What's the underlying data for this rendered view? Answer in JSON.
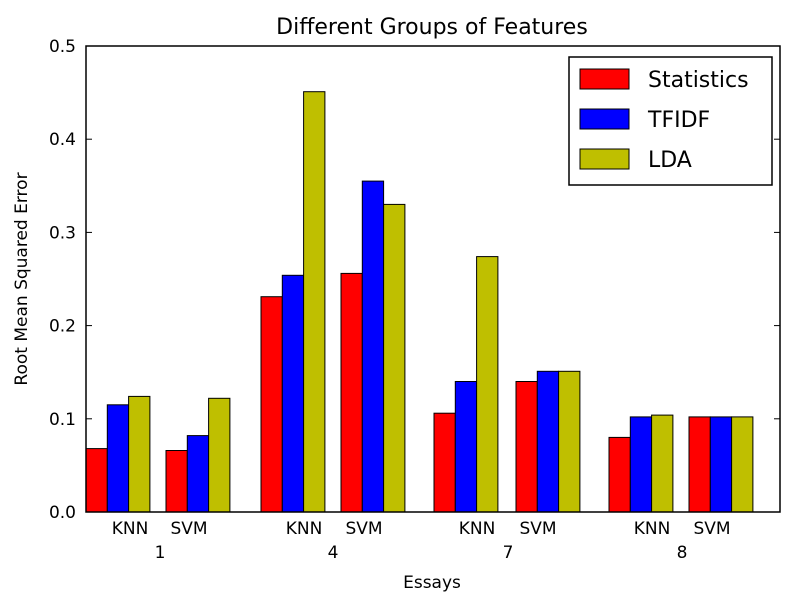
{
  "chart_data": {
    "type": "bar",
    "title": "Different Groups of Features",
    "xlabel": "Essays",
    "ylabel": "Root Mean Squared Error",
    "ylim": [
      0,
      0.5
    ],
    "yticks": [
      "0.0",
      "0.1",
      "0.2",
      "0.3",
      "0.4",
      "0.5"
    ],
    "grid": false,
    "legend_position": "top-right",
    "essays": [
      "1",
      "4",
      "7",
      "8"
    ],
    "methods": [
      "KNN",
      "SVM"
    ],
    "categories": [
      "1 KNN",
      "1 SVM",
      "4 KNN",
      "4 SVM",
      "7 KNN",
      "7 SVM",
      "8 KNN",
      "8 SVM"
    ],
    "series": [
      {
        "name": "Statistics",
        "color": "#ff0000",
        "values": [
          0.068,
          0.066,
          0.231,
          0.256,
          0.106,
          0.14,
          0.08,
          0.102
        ]
      },
      {
        "name": "TFIDF",
        "color": "#0000ff",
        "values": [
          0.115,
          0.082,
          0.254,
          0.355,
          0.14,
          0.151,
          0.102,
          0.102
        ]
      },
      {
        "name": "LDA",
        "color": "#bfbf00",
        "values": [
          0.124,
          0.122,
          0.451,
          0.33,
          0.274,
          0.151,
          0.104,
          0.102
        ]
      }
    ]
  }
}
